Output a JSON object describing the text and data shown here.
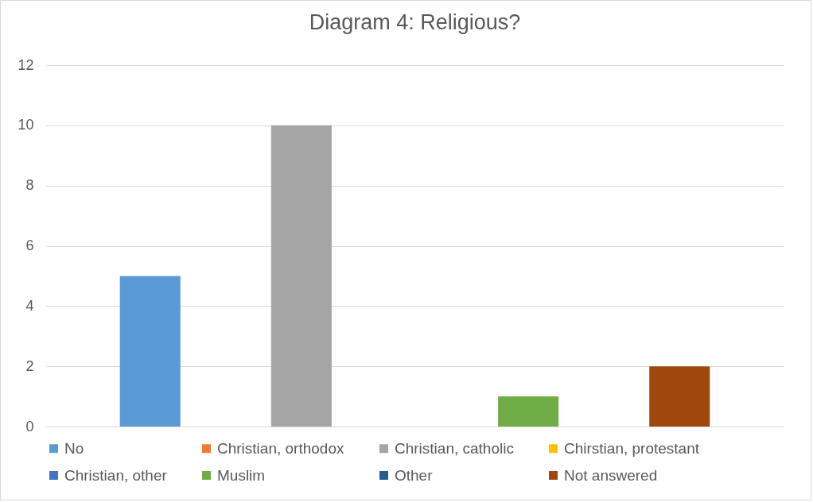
{
  "chart_data": {
    "type": "bar",
    "title": "Diagram 4: Religious?",
    "categories": [
      null
    ],
    "series": [
      {
        "name": "No",
        "color": "#5b9bd5",
        "values": [
          5
        ]
      },
      {
        "name": "Christian, orthodox",
        "color": "#ed7d31",
        "values": [
          0
        ]
      },
      {
        "name": "Christian, catholic",
        "color": "#a5a5a5",
        "values": [
          10
        ]
      },
      {
        "name": "Chirstian, protestant",
        "color": "#ffc000",
        "values": [
          0
        ]
      },
      {
        "name": "Christian, other",
        "color": "#4472c4",
        "values": [
          0
        ]
      },
      {
        "name": "Muslim",
        "color": "#70ad47",
        "values": [
          1
        ]
      },
      {
        "name": "Other",
        "color": "#255e91",
        "values": [
          0
        ]
      },
      {
        "name": "Not answered",
        "color": "#9e480e",
        "values": [
          2
        ]
      }
    ],
    "ylim": [
      0,
      12
    ],
    "yticks": [
      0,
      2,
      4,
      6,
      8,
      10,
      12
    ],
    "grid": "y",
    "legend": "bottom",
    "tick_labels": "y"
  }
}
